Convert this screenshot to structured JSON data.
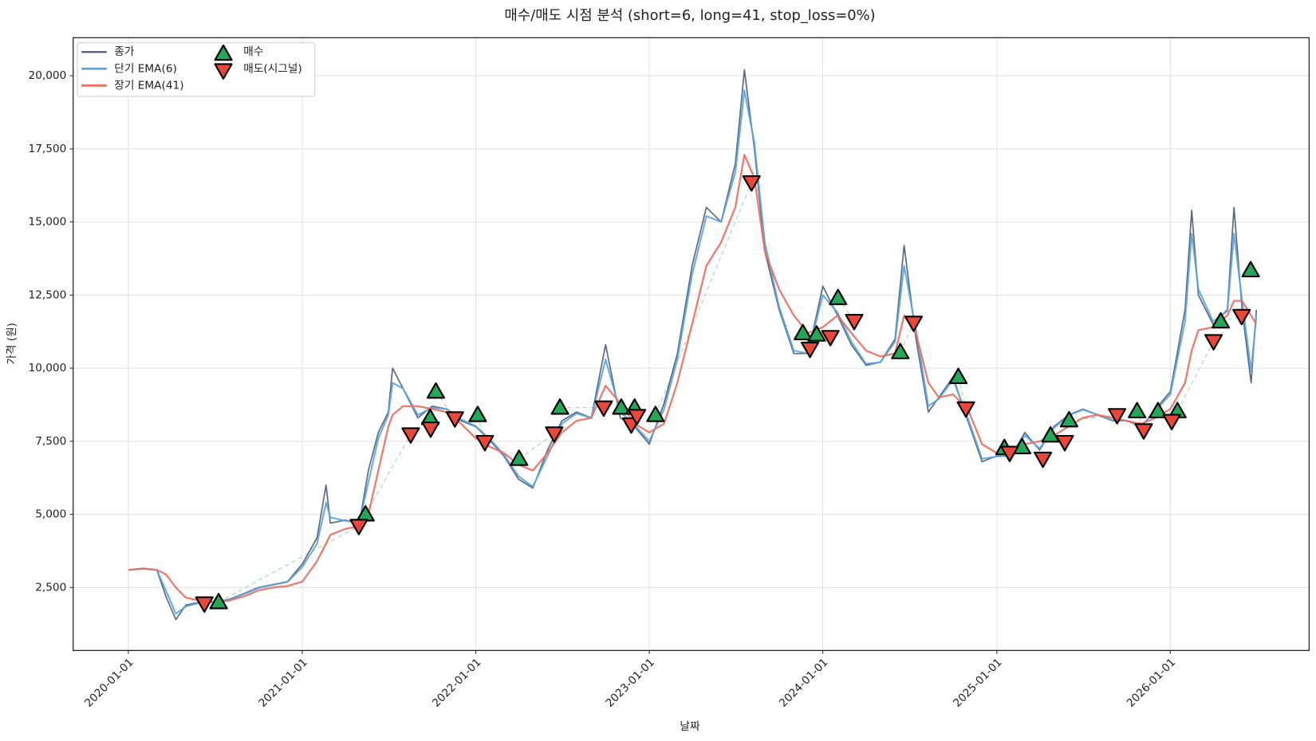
{
  "chart_data": {
    "type": "line",
    "title": "매수/매도 시점 분석 (short=6, long=41, stop_loss=0%)",
    "x_label": "날짜",
    "y_label": "가격 (원)",
    "grid": true,
    "legend": "upper left",
    "xlim": [
      "2019-09-07",
      "2026-10-20"
    ],
    "xticks": [
      "2020-01-01",
      "2021-01-01",
      "2022-01-01",
      "2023-01-01",
      "2024-01-01",
      "2025-01-01",
      "2026-01-01"
    ],
    "ylim": [
      345,
      21300
    ],
    "yticks": [
      {
        "value": 2500,
        "label": "2,500"
      },
      {
        "value": 5000,
        "label": "5,000"
      },
      {
        "value": 7500,
        "label": "7,500"
      },
      {
        "value": 10000,
        "label": "10,000"
      },
      {
        "value": 12500,
        "label": "12,500"
      },
      {
        "value": 15000,
        "label": "15,000"
      },
      {
        "value": 17500,
        "label": "17,500"
      },
      {
        "value": 20000,
        "label": "20,000"
      }
    ],
    "x": [
      "2020-01-01",
      "2020-02-01",
      "2020-03-01",
      "2020-03-20",
      "2020-04-10",
      "2020-05-01",
      "2020-06-01",
      "2020-07-01",
      "2020-08-01",
      "2020-09-01",
      "2020-10-01",
      "2020-11-01",
      "2020-12-01",
      "2021-01-01",
      "2021-02-01",
      "2021-02-20",
      "2021-03-01",
      "2021-04-01",
      "2021-05-01",
      "2021-05-20",
      "2021-06-10",
      "2021-07-01",
      "2021-07-10",
      "2021-08-01",
      "2021-09-01",
      "2021-10-01",
      "2021-11-01",
      "2021-12-01",
      "2022-01-01",
      "2022-02-01",
      "2022-03-01",
      "2022-04-01",
      "2022-05-01",
      "2022-06-01",
      "2022-07-01",
      "2022-08-01",
      "2022-09-01",
      "2022-10-01",
      "2022-11-01",
      "2022-12-01",
      "2023-01-01",
      "2023-02-01",
      "2023-03-01",
      "2023-04-01",
      "2023-05-01",
      "2023-06-01",
      "2023-07-01",
      "2023-07-20",
      "2023-08-10",
      "2023-09-01",
      "2023-10-01",
      "2023-11-01",
      "2023-12-01",
      "2024-01-01",
      "2024-02-01",
      "2024-03-01",
      "2024-04-01",
      "2024-05-01",
      "2024-06-01",
      "2024-06-20",
      "2024-07-15",
      "2024-08-10",
      "2024-09-01",
      "2024-10-01",
      "2024-11-01",
      "2024-12-01",
      "2025-01-01",
      "2025-02-01",
      "2025-03-01",
      "2025-04-01",
      "2025-05-01",
      "2025-06-01",
      "2025-07-01",
      "2025-08-01",
      "2025-09-01",
      "2025-10-01",
      "2025-11-01",
      "2025-12-01",
      "2026-01-01",
      "2026-02-01",
      "2026-02-15",
      "2026-03-01",
      "2026-04-01",
      "2026-05-01",
      "2026-05-15",
      "2026-06-01",
      "2026-06-20",
      "2026-07-01"
    ],
    "series": [
      {
        "name": "종가",
        "color": "#4a5a70",
        "width": 1.6,
        "values": [
          3100,
          3150,
          3100,
          2200,
          1400,
          1900,
          2000,
          2000,
          2100,
          2300,
          2500,
          2600,
          2700,
          3300,
          4200,
          6000,
          4700,
          4800,
          4700,
          6500,
          7800,
          8500,
          10000,
          9300,
          8300,
          8700,
          8600,
          8200,
          8000,
          7500,
          7000,
          6200,
          5900,
          7200,
          8200,
          8500,
          8300,
          10800,
          8300,
          8000,
          7400,
          8800,
          10500,
          13500,
          15500,
          15000,
          17000,
          20200,
          17500,
          14000,
          12000,
          10500,
          10500,
          12800,
          11800,
          10800,
          10100,
          10200,
          11000,
          14200,
          11000,
          8500,
          9000,
          9700,
          8200,
          6800,
          7000,
          7000,
          7800,
          7200,
          8000,
          8400,
          8600,
          8400,
          8200,
          8200,
          8000,
          8600,
          9200,
          12000,
          15400,
          12500,
          11500,
          12000,
          15500,
          12000,
          9500,
          12000
        ]
      },
      {
        "name": "단기 EMA(6)",
        "color": "#5aa3dc",
        "width": 2,
        "values": [
          3100,
          3140,
          3100,
          2400,
          1600,
          1850,
          1980,
          2000,
          2080,
          2280,
          2480,
          2590,
          2690,
          3200,
          4000,
          5400,
          4900,
          4780,
          4720,
          6100,
          7600,
          8400,
          9500,
          9300,
          8400,
          8650,
          8600,
          8250,
          8020,
          7550,
          7050,
          6300,
          5950,
          7000,
          8100,
          8450,
          8300,
          10300,
          8500,
          8050,
          7500,
          8600,
          10300,
          13200,
          15200,
          15000,
          16700,
          19500,
          17700,
          14300,
          12100,
          10600,
          10500,
          12500,
          11900,
          10900,
          10150,
          10200,
          10900,
          13500,
          11300,
          8700,
          8950,
          9600,
          8300,
          6900,
          6980,
          7000,
          7700,
          7250,
          7950,
          8380,
          8580,
          8410,
          8220,
          8200,
          8020,
          8550,
          9100,
          11600,
          14600,
          12700,
          11600,
          11950,
          14600,
          12300,
          9900,
          11800
        ]
      },
      {
        "name": "장기 EMA(41)",
        "color": "#ea6e62",
        "width": 2.2,
        "values": [
          3100,
          3150,
          3100,
          2950,
          2500,
          2150,
          2050,
          2000,
          2050,
          2200,
          2400,
          2500,
          2550,
          2700,
          3400,
          4000,
          4300,
          4500,
          4600,
          5000,
          6500,
          8000,
          8400,
          8700,
          8700,
          8600,
          8500,
          8100,
          7600,
          7300,
          7100,
          6700,
          6500,
          7100,
          7800,
          8200,
          8300,
          9400,
          8800,
          8100,
          7800,
          8100,
          9500,
          11500,
          13500,
          14300,
          15500,
          17300,
          16500,
          14000,
          12700,
          11800,
          11200,
          11400,
          11800,
          11200,
          10600,
          10400,
          10500,
          11800,
          11200,
          9500,
          9000,
          9100,
          8600,
          7400,
          7100,
          7000,
          7400,
          7500,
          7700,
          8000,
          8300,
          8400,
          8300,
          8200,
          8100,
          8300,
          8600,
          9500,
          10600,
          11300,
          11400,
          11800,
          12300,
          12300,
          11800,
          11500
        ]
      }
    ],
    "signals": [
      {
        "name": "매수",
        "marker": "up",
        "color": "#27a65a",
        "x": [
          "2020-07-09",
          "2021-05-14",
          "2021-09-27",
          "2021-10-09",
          "2022-01-05",
          "2022-04-02",
          "2022-06-27",
          "2022-11-03",
          "2022-12-01",
          "2023-01-14",
          "2023-11-20",
          "2023-12-19",
          "2024-02-02",
          "2024-06-12",
          "2024-10-12",
          "2025-01-17",
          "2025-02-23",
          "2025-04-24",
          "2025-06-02",
          "2025-10-23",
          "2025-12-06",
          "2026-01-16",
          "2026-04-17",
          "2026-06-19"
        ],
        "values": [
          2000,
          5000,
          8300,
          9200,
          8400,
          6900,
          8650,
          8650,
          8650,
          8400,
          11200,
          11150,
          12400,
          10550,
          9700,
          7270,
          7300,
          7700,
          8220,
          8530,
          8530,
          8530,
          11600,
          13350
        ]
      },
      {
        "name": "매도(시그널)",
        "marker": "down",
        "color": "#e8483c",
        "x": [
          "2020-06-09",
          "2021-04-30",
          "2021-08-17",
          "2021-09-28",
          "2021-11-18",
          "2022-01-20",
          "2022-06-15",
          "2022-09-27",
          "2022-11-24",
          "2022-12-06",
          "2023-08-04",
          "2023-12-05",
          "2024-01-17",
          "2024-03-07",
          "2024-07-10",
          "2024-10-28",
          "2025-01-28",
          "2025-04-08",
          "2025-05-24",
          "2025-09-11",
          "2025-11-06",
          "2026-01-04",
          "2026-04-02",
          "2026-05-31"
        ],
        "values": [
          1950,
          4600,
          7730,
          7930,
          8280,
          7470,
          7760,
          8650,
          8070,
          8360,
          16350,
          10660,
          11060,
          11610,
          11550,
          8620,
          7100,
          6900,
          7470,
          8390,
          7870,
          8190,
          10920,
          11780
        ]
      }
    ]
  }
}
